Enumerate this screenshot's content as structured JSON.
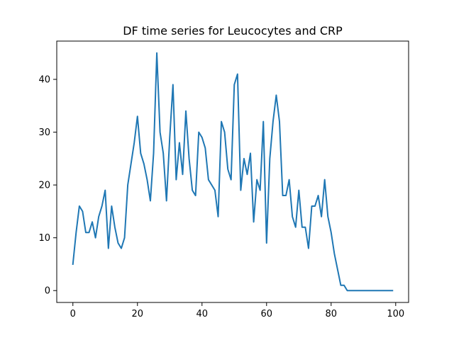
{
  "chart_data": {
    "type": "line",
    "title": "DF time series for Leucocytes and CRP",
    "xlabel": "",
    "ylabel": "",
    "xlim": [
      -5,
      104
    ],
    "ylim": [
      -2.25,
      47.25
    ],
    "xticks": [
      0,
      20,
      40,
      60,
      80,
      100
    ],
    "yticks": [
      0,
      10,
      20,
      30,
      40
    ],
    "grid": false,
    "line_color": "#1f77b4",
    "series": [
      {
        "x": [
          0,
          1,
          2,
          3,
          4,
          5,
          6,
          7,
          8,
          9,
          10,
          11,
          12,
          13,
          14,
          15,
          16,
          17,
          18,
          19,
          20,
          21,
          22,
          23,
          24,
          25,
          26,
          27,
          28,
          29,
          30,
          31,
          32,
          33,
          34,
          35,
          36,
          37,
          38,
          39,
          40,
          41,
          42,
          43,
          44,
          45,
          46,
          47,
          48,
          49,
          50,
          51,
          52,
          53,
          54,
          55,
          56,
          57,
          58,
          59,
          60,
          61,
          62,
          63,
          64,
          65,
          66,
          67,
          68,
          69,
          70,
          71,
          72,
          73,
          74,
          75,
          76,
          77,
          78,
          79,
          80,
          81,
          82,
          83,
          84,
          85,
          86,
          87,
          88,
          89,
          90,
          91,
          92,
          93,
          94,
          95,
          96,
          97,
          98,
          99
        ],
        "values": [
          5,
          11,
          16,
          15,
          11,
          11,
          13,
          10,
          14,
          16,
          19,
          8,
          16,
          12,
          9,
          8,
          10,
          20,
          24,
          28,
          33,
          26,
          24,
          21,
          17,
          26,
          45,
          30,
          26,
          17,
          29,
          39,
          21,
          28,
          22,
          34,
          25,
          19,
          18,
          30,
          29,
          27,
          21,
          20,
          19,
          14,
          32,
          30,
          23,
          21,
          39,
          41,
          19,
          25,
          22,
          26,
          13,
          21,
          19,
          32,
          9,
          25,
          32,
          37,
          32,
          18,
          18,
          21,
          14,
          12,
          19,
          12,
          12,
          8,
          16,
          16,
          18,
          14,
          21,
          14,
          11,
          7,
          4,
          1,
          1,
          0,
          0,
          0,
          0,
          0,
          0,
          0,
          0,
          0,
          0,
          0,
          0,
          0,
          0,
          0
        ]
      }
    ]
  }
}
